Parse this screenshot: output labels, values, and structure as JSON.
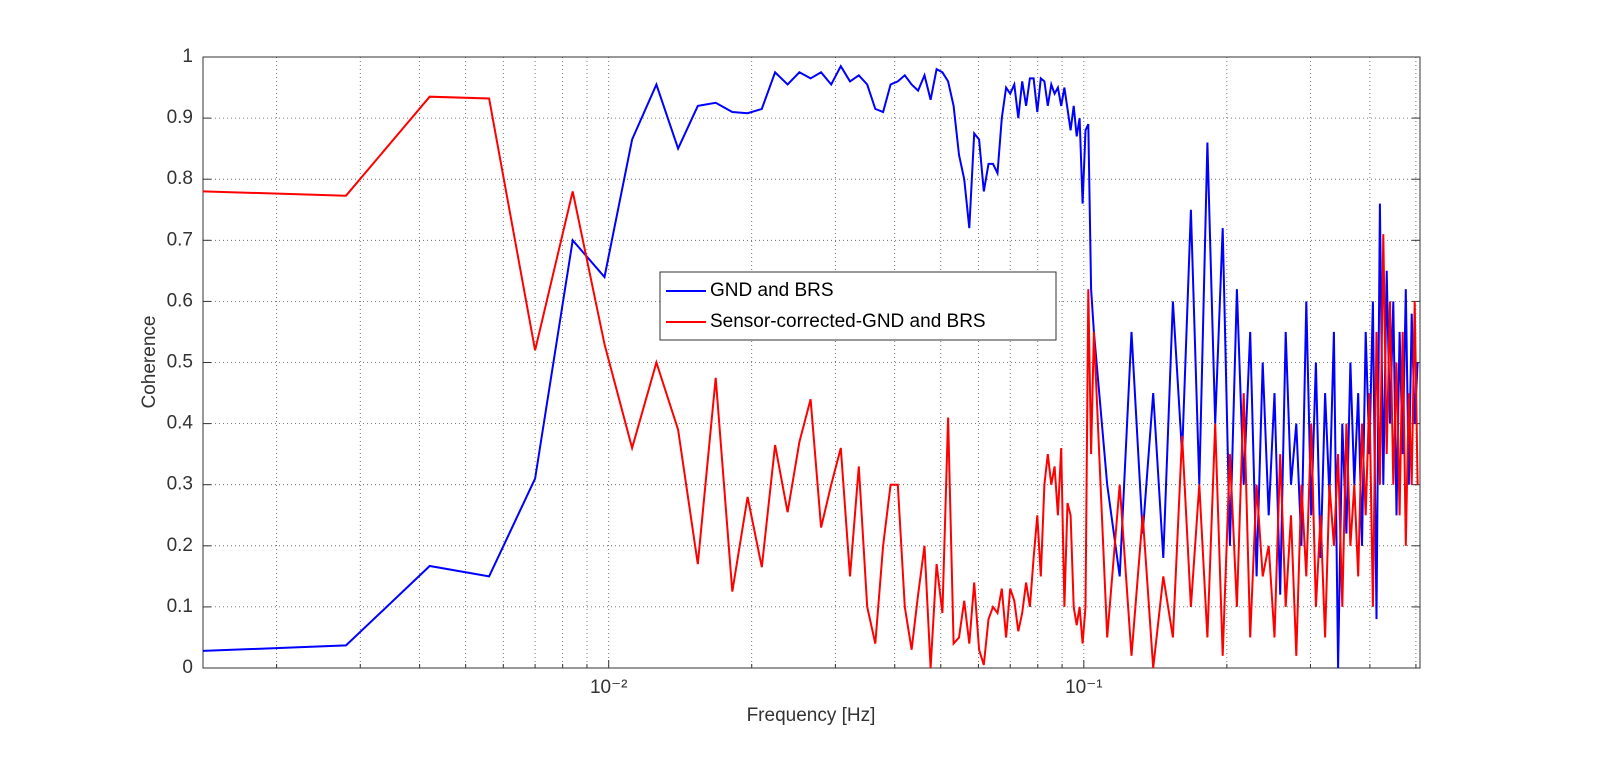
{
  "chart_data": {
    "type": "line",
    "xlabel": "Frequency [Hz]",
    "ylabel": "Coherence",
    "xscale": "log",
    "grid": true,
    "legend": "center",
    "xlim": [
      0.0014,
      0.51
    ],
    "ylim": [
      0,
      1
    ],
    "xticks": [
      {
        "value": 0.01,
        "label": "10⁻²"
      },
      {
        "value": 0.1,
        "label": "10⁻¹"
      }
    ],
    "xminorticks": [
      0.002,
      0.003,
      0.004,
      0.005,
      0.006,
      0.007,
      0.008,
      0.009,
      0.02,
      0.03,
      0.04,
      0.05,
      0.06,
      0.07,
      0.08,
      0.09,
      0.2,
      0.3,
      0.4,
      0.5
    ],
    "yticks": [
      0,
      0.1,
      0.2,
      0.3,
      0.4,
      0.5,
      0.6,
      0.7,
      0.8,
      0.9,
      1
    ],
    "x": [
      0.0014,
      0.0028,
      0.0042,
      0.0056,
      0.007,
      0.0084,
      0.0098,
      0.0112,
      0.0126,
      0.014,
      0.0154,
      0.0168,
      0.0182,
      0.0196,
      0.021,
      0.0224,
      0.0238,
      0.0252,
      0.0266,
      0.028,
      0.0294,
      0.0308,
      0.0322,
      0.0336,
      0.035,
      0.0364,
      0.0378,
      0.0392,
      0.0406,
      0.042,
      0.0434,
      0.0448,
      0.0462,
      0.0476,
      0.049,
      0.0504,
      0.0518,
      0.0532,
      0.0546,
      0.056,
      0.0574,
      0.0588,
      0.0602,
      0.0616,
      0.063,
      0.0644,
      0.0658,
      0.0672,
      0.0686,
      0.07,
      0.0714,
      0.0728,
      0.0742,
      0.0756,
      0.077,
      0.0784,
      0.0798,
      0.0812,
      0.0826,
      0.084,
      0.0854,
      0.0868,
      0.0882,
      0.0896,
      0.091,
      0.0924,
      0.0938,
      0.0952,
      0.0966,
      0.098,
      0.0994,
      0.1008,
      0.1022,
      0.1036,
      0.105,
      0.112,
      0.119,
      0.126,
      0.133,
      0.14,
      0.147,
      0.154,
      0.161,
      0.168,
      0.175,
      0.182,
      0.189,
      0.196,
      0.203,
      0.21,
      0.217,
      0.224,
      0.231,
      0.238,
      0.245,
      0.252,
      0.259,
      0.266,
      0.273,
      0.28,
      0.287,
      0.294,
      0.301,
      0.308,
      0.315,
      0.322,
      0.329,
      0.336,
      0.343,
      0.35,
      0.357,
      0.364,
      0.371,
      0.378,
      0.385,
      0.392,
      0.399,
      0.406,
      0.413,
      0.42,
      0.427,
      0.434,
      0.441,
      0.448,
      0.455,
      0.462,
      0.469,
      0.476,
      0.483,
      0.49,
      0.497,
      0.504
    ],
    "series": [
      {
        "name": "GND and BRS",
        "color": "#0000ff",
        "values": [
          0.028,
          0.037,
          0.167,
          0.15,
          0.31,
          0.7,
          0.64,
          0.865,
          0.955,
          0.85,
          0.92,
          0.925,
          0.91,
          0.908,
          0.915,
          0.975,
          0.955,
          0.975,
          0.965,
          0.975,
          0.955,
          0.985,
          0.96,
          0.97,
          0.955,
          0.915,
          0.91,
          0.955,
          0.96,
          0.97,
          0.955,
          0.945,
          0.97,
          0.93,
          0.98,
          0.975,
          0.96,
          0.92,
          0.84,
          0.8,
          0.72,
          0.875,
          0.865,
          0.78,
          0.825,
          0.825,
          0.81,
          0.9,
          0.95,
          0.94,
          0.955,
          0.9,
          0.96,
          0.92,
          0.965,
          0.965,
          0.91,
          0.965,
          0.96,
          0.92,
          0.955,
          0.94,
          0.95,
          0.92,
          0.95,
          0.915,
          0.88,
          0.92,
          0.87,
          0.9,
          0.76,
          0.88,
          0.89,
          0.62,
          0.55,
          0.3,
          0.15,
          0.55,
          0.22,
          0.45,
          0.18,
          0.6,
          0.35,
          0.75,
          0.3,
          0.86,
          0.4,
          0.72,
          0.2,
          0.62,
          0.3,
          0.55,
          0.15,
          0.5,
          0.25,
          0.45,
          0.12,
          0.55,
          0.3,
          0.4,
          0.2,
          0.6,
          0.25,
          0.5,
          0.18,
          0.45,
          0.28,
          0.55,
          0.0,
          0.4,
          0.22,
          0.5,
          0.3,
          0.45,
          0.2,
          0.55,
          0.35,
          0.6,
          0.08,
          0.76,
          0.3,
          0.65,
          0.4,
          0.6,
          0.25,
          0.55,
          0.35,
          0.62,
          0.3,
          0.58,
          0.4,
          0.5
        ]
      },
      {
        "name": "Sensor-corrected-GND and BRS",
        "color": "#ff0000",
        "values": [
          0.78,
          0.773,
          0.935,
          0.932,
          0.52,
          0.78,
          0.53,
          0.36,
          0.5,
          0.39,
          0.17,
          0.475,
          0.125,
          0.28,
          0.165,
          0.365,
          0.255,
          0.37,
          0.44,
          0.23,
          0.3,
          0.36,
          0.15,
          0.33,
          0.1,
          0.04,
          0.2,
          0.3,
          0.3,
          0.1,
          0.03,
          0.12,
          0.2,
          0,
          0.17,
          0.09,
          0.41,
          0.04,
          0.05,
          0.11,
          0.04,
          0.14,
          0.03,
          0.005,
          0.08,
          0.1,
          0.09,
          0.13,
          0.05,
          0.13,
          0.11,
          0.06,
          0.09,
          0.14,
          0.1,
          0.18,
          0.25,
          0.15,
          0.3,
          0.35,
          0.3,
          0.33,
          0.25,
          0.36,
          0.1,
          0.27,
          0.25,
          0.1,
          0.07,
          0.1,
          0.04,
          0.1,
          0.62,
          0.35,
          0.55,
          0.05,
          0.3,
          0.02,
          0.25,
          0.0,
          0.15,
          0.05,
          0.38,
          0.1,
          0.3,
          0.05,
          0.4,
          0.02,
          0.35,
          0.1,
          0.45,
          0.05,
          0.3,
          0.15,
          0.2,
          0.05,
          0.35,
          0.1,
          0.25,
          0.02,
          0.3,
          0.15,
          0.4,
          0.1,
          0.25,
          0.05,
          0.3,
          0.2,
          0.35,
          0.1,
          0.4,
          0.2,
          0.3,
          0.15,
          0.4,
          0.25,
          0.45,
          0.1,
          0.55,
          0.3,
          0.71,
          0.35,
          0.6,
          0.3,
          0.5,
          0.25,
          0.55,
          0.2,
          0.45,
          0.3,
          0.6,
          0.3
        ]
      }
    ]
  }
}
